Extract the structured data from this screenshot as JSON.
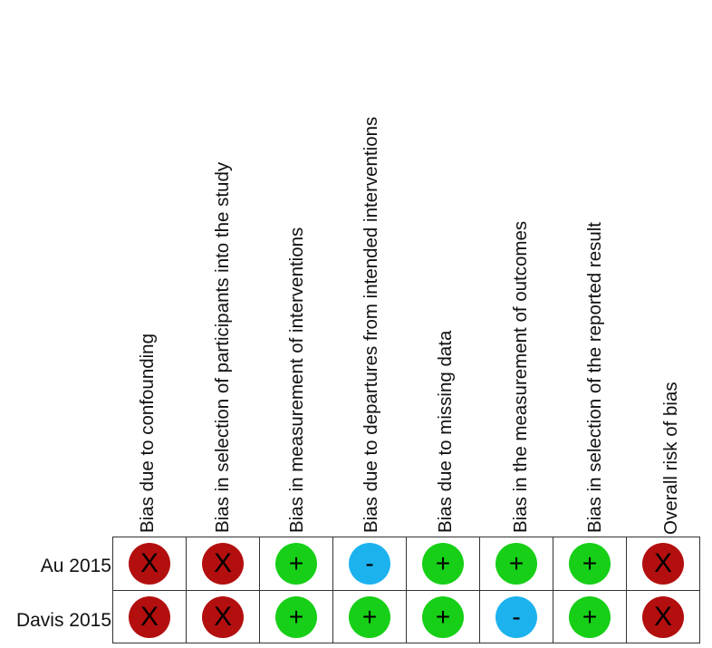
{
  "domains": [
    "Bias due to confounding",
    "Bias in selection of participants into the study",
    "Bias in measurement of interventions",
    "Bias due to departures from intended interventions",
    "Bias due to missing data",
    "Bias in the measurement of outcomes",
    "Bias in selection of the reported result",
    "Overall risk of bias"
  ],
  "legend_colors": {
    "high": "#b30f0f",
    "low": "#16cf16",
    "unclear": "#1cb2ee"
  },
  "studies": [
    {
      "name": "Au 2015",
      "judgements": [
        {
          "level": "high",
          "symbol": "X"
        },
        {
          "level": "high",
          "symbol": "X"
        },
        {
          "level": "low",
          "symbol": "+"
        },
        {
          "level": "unclear",
          "symbol": "-"
        },
        {
          "level": "low",
          "symbol": "+"
        },
        {
          "level": "low",
          "symbol": "+"
        },
        {
          "level": "low",
          "symbol": "+"
        },
        {
          "level": "high",
          "symbol": "X"
        }
      ]
    },
    {
      "name": "Davis 2015",
      "judgements": [
        {
          "level": "high",
          "symbol": "X"
        },
        {
          "level": "high",
          "symbol": "X"
        },
        {
          "level": "low",
          "symbol": "+"
        },
        {
          "level": "low",
          "symbol": "+"
        },
        {
          "level": "low",
          "symbol": "+"
        },
        {
          "level": "unclear",
          "symbol": "-"
        },
        {
          "level": "low",
          "symbol": "+"
        },
        {
          "level": "high",
          "symbol": "X"
        }
      ]
    }
  ]
}
